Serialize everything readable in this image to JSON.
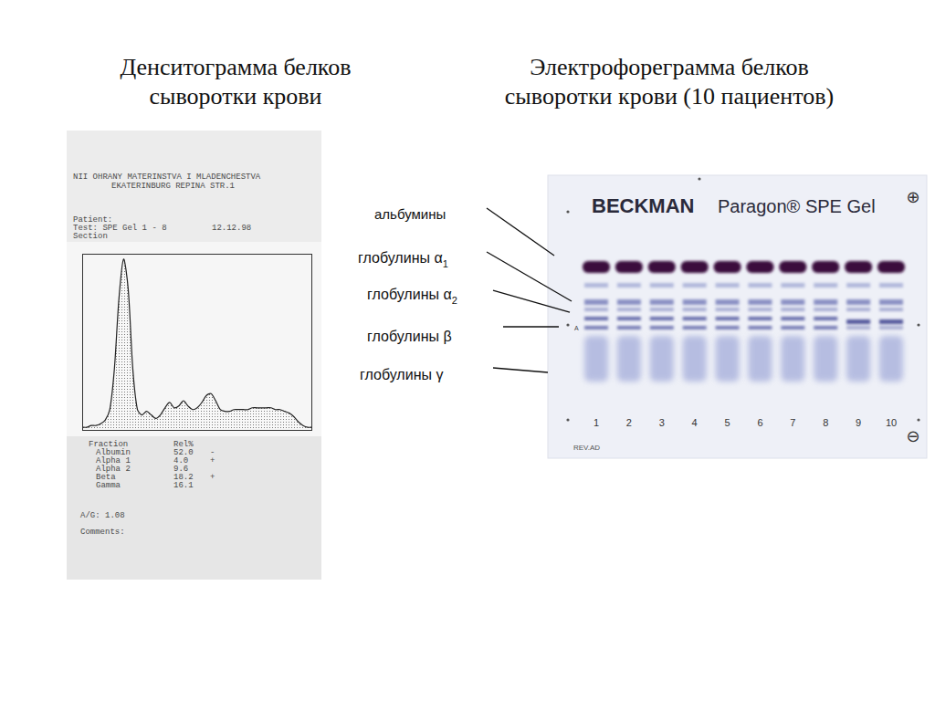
{
  "titles": {
    "left": [
      "Денситограмма белков",
      "сыворотки крови"
    ],
    "right": [
      "Электрофореграмма белков",
      "сыворотки крови (10 пациентов)"
    ]
  },
  "printout": {
    "header": [
      "NII OHRANY MATERINSTVA I MLADENCHESTVA",
      "EKATERINBURG REPINA STR.1"
    ],
    "patient": "Patient:",
    "test": "Test: SPE Gel 1 - 8",
    "date": "12.12.98",
    "section": "Section",
    "table": {
      "columns": [
        "Fraction",
        "Rel%"
      ],
      "rows": [
        {
          "name": "Albumin",
          "rel": "52.0",
          "flag": "-"
        },
        {
          "name": "Alpha 1",
          "rel": "4.0",
          "flag": "+"
        },
        {
          "name": "Alpha 2",
          "rel": "9.6"
        },
        {
          "name": "Beta",
          "rel": "18.2",
          "flag": "+"
        },
        {
          "name": "Gamma",
          "rel": "16.1"
        }
      ]
    },
    "ratio": "A/G: 1.08",
    "comments": "Comments:"
  },
  "chart_data": {
    "type": "line",
    "x": [
      0,
      2,
      4,
      6,
      8,
      10,
      12,
      14,
      16,
      18,
      20,
      22,
      24,
      26,
      28,
      30,
      32,
      34,
      36,
      38,
      40,
      42,
      44,
      46,
      48,
      50,
      52,
      54,
      56,
      58,
      60,
      62,
      64,
      66,
      68,
      70,
      72,
      74,
      76,
      78,
      80,
      82,
      84,
      86,
      88,
      90,
      92,
      94,
      96,
      98,
      100
    ],
    "values": [
      2,
      2,
      3,
      3,
      4,
      6,
      12,
      35,
      75,
      97,
      80,
      35,
      12,
      9,
      11,
      9,
      7,
      9,
      13,
      16,
      13,
      14,
      17,
      14,
      12,
      13,
      16,
      20,
      21,
      17,
      12,
      11,
      11,
      12,
      12,
      12,
      12,
      13,
      13,
      13,
      13,
      13,
      12,
      12,
      11,
      10,
      8,
      5,
      3,
      2,
      2
    ],
    "xlim": [
      0,
      100
    ],
    "ylim": [
      0,
      100
    ],
    "grid": false,
    "tick_labels": false,
    "color": "#222222"
  },
  "gel": {
    "brand": "BECKMAN",
    "product": "Paragon® SPE Gel",
    "lanes": [
      "1",
      "2",
      "3",
      "4",
      "5",
      "6",
      "7",
      "8",
      "9",
      "10"
    ],
    "code": "REV.AD",
    "marker": "A",
    "anode": "⊕",
    "cathode": "⊖",
    "labels": [
      {
        "text": "альбумины"
      },
      {
        "text": "глобулины α",
        "sub": "1"
      },
      {
        "text": "глобулины α",
        "sub": "2"
      },
      {
        "text": "глобулины β"
      },
      {
        "text": "глобулины γ"
      }
    ]
  }
}
